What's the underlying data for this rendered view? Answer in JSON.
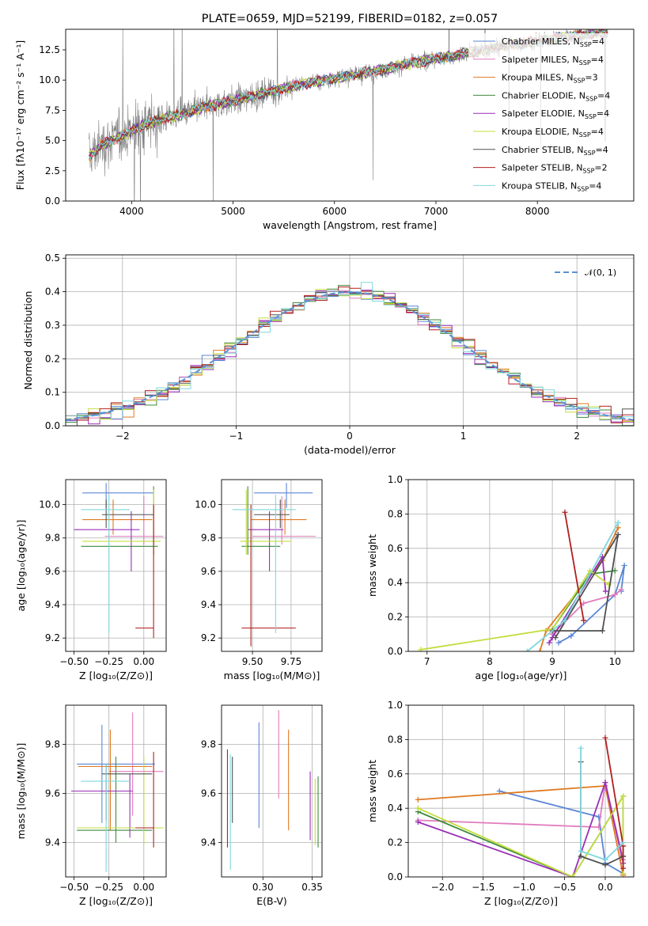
{
  "colors": {
    "Chabrier MILES": "#5b86d6",
    "Salpeter MILES": "#e07bbd",
    "Kroupa MILES": "#de7a22",
    "Chabrier ELODIE": "#3f8a3f",
    "Salpeter ELODIE": "#9a2fb8",
    "Kroupa ELODIE": "#c4dd3e",
    "Chabrier STELIB": "#505050",
    "Salpeter STELIB": "#b21f1f",
    "Kroupa STELIB": "#7fd7dd",
    "data": "#808080",
    "gaussian": "#5b8fd6"
  },
  "chart_data": [
    {
      "id": "spectrum",
      "type": "line",
      "title": "PLATE=0659, MJD=52199, FIBERID=0182, z=0.057",
      "xlabel": "wavelength [Angstrom, rest frame]",
      "ylabel": "Flux [fλ10⁻¹⁷ erg cm⁻² s⁻¹ A⁻¹]",
      "xlim": [
        3350,
        8950
      ],
      "ylim": [
        0,
        14.2
      ],
      "xticks": [
        "4000",
        "5000",
        "6000",
        "7000",
        "8000"
      ],
      "yticks": [
        "0.0",
        "2.5",
        "5.0",
        "7.5",
        "10.0",
        "12.5"
      ],
      "continuum": {
        "x": [
          3580,
          3700,
          3900,
          4100,
          4300,
          4500,
          4700,
          4900,
          5100,
          5300,
          5500,
          5700,
          5900,
          6100,
          6300,
          6500,
          6700,
          6900,
          7100,
          7300,
          7500,
          7700,
          7900,
          8100,
          8300,
          8500,
          8700
        ],
        "y": [
          3.7,
          4.6,
          5.4,
          6.2,
          6.8,
          7.2,
          7.7,
          8.1,
          8.5,
          8.9,
          9.3,
          9.7,
          10.0,
          10.3,
          10.6,
          10.9,
          11.3,
          11.6,
          11.9,
          12.2,
          12.5,
          12.9,
          13.1,
          13.3,
          13.6,
          13.8,
          14.0
        ]
      },
      "legend": [
        {
          "label": "Chabrier MILES, N",
          "n": "4"
        },
        {
          "label": "Salpeter MILES, N",
          "n": "4"
        },
        {
          "label": "Kroupa MILES, N",
          "n": "3"
        },
        {
          "label": "Chabrier ELODIE, N",
          "n": "4"
        },
        {
          "label": "Salpeter ELODIE, N",
          "n": "4"
        },
        {
          "label": "Kroupa ELODIE, N",
          "n": "4"
        },
        {
          "label": "Chabrier STELIB, N",
          "n": "4"
        },
        {
          "label": "Salpeter STELIB, N",
          "n": "2"
        },
        {
          "label": "Kroupa STELIB, N",
          "n": "4"
        }
      ],
      "legend_sub": "SSP",
      "legend_loc": "right"
    },
    {
      "id": "residuals",
      "type": "histogram",
      "xlabel": "(data-model)/error",
      "ylabel": "Normed distribution",
      "xlim": [
        -2.5,
        2.5
      ],
      "ylim": [
        0,
        0.51
      ],
      "xticks": [
        "−2",
        "−1",
        "0",
        "1",
        "2"
      ],
      "yticks": [
        "0.0",
        "0.1",
        "0.2",
        "0.3",
        "0.4",
        "0.5"
      ],
      "gaussian_label": "𝒩(0, 1)",
      "legend_loc": "upper right",
      "grid": true,
      "bin_width": 0.1
    },
    {
      "id": "age-vs-Z",
      "type": "errorbar",
      "xlabel": "Z [log₁₀(Z/Z⊙)]",
      "ylabel": "age  [log₁₀(age/yr)]",
      "xlim": [
        -0.56,
        0.16
      ],
      "ylim": [
        9.12,
        10.15
      ],
      "xticks": [
        "−0.50",
        "−0.25",
        "0.00"
      ],
      "yticks": [
        "9.2",
        "9.4",
        "9.6",
        "9.8",
        "10.0"
      ],
      "points": [
        {
          "s": "Chabrier MILES",
          "x": -0.27,
          "y": 10.07,
          "xl": -0.44,
          "xh": 0.07,
          "yl": 9.98,
          "yh": 10.13
        },
        {
          "s": "Salpeter MILES",
          "x": 0.0,
          "y": 9.81,
          "xl": -0.28,
          "xh": 0.14,
          "yl": 9.76,
          "yh": 10.05
        },
        {
          "s": "Kroupa MILES",
          "x": -0.22,
          "y": 9.91,
          "xl": -0.44,
          "xh": 0.06,
          "yl": 9.82,
          "yh": 10.03
        },
        {
          "s": "Chabrier ELODIE",
          "x": 0.07,
          "y": 9.75,
          "xl": -0.45,
          "xh": 0.1,
          "yl": 9.7,
          "yh": 10.11
        },
        {
          "s": "Salpeter ELODIE",
          "x": -0.09,
          "y": 9.85,
          "xl": -0.5,
          "xh": -0.03,
          "yl": 9.6,
          "yh": 9.96
        },
        {
          "s": "Kroupa ELODIE",
          "x": 0.07,
          "y": 9.78,
          "xl": -0.44,
          "xh": 0.12,
          "yl": 9.7,
          "yh": 10.09
        },
        {
          "s": "Chabrier STELIB",
          "x": -0.27,
          "y": 9.94,
          "xl": -0.3,
          "xh": 0.07,
          "yl": 9.86,
          "yh": 10.03
        },
        {
          "s": "Salpeter STELIB",
          "x": 0.07,
          "y": 9.26,
          "xl": -0.06,
          "xh": 0.07,
          "yl": 9.2,
          "yh": 10.0
        },
        {
          "s": "Kroupa STELIB",
          "x": -0.25,
          "y": 9.97,
          "xl": -0.45,
          "xh": -0.1,
          "yl": 9.23,
          "yh": 10.06
        }
      ]
    },
    {
      "id": "age-vs-mass",
      "type": "errorbar",
      "xlabel": "mass [log₁₀(M/M⊙)]",
      "ylabel": "",
      "xlim": [
        9.3,
        9.95
      ],
      "ylim": [
        9.12,
        10.15
      ],
      "xticks": [
        "9.50",
        "9.75"
      ],
      "yticks": [
        "9.2",
        "9.4",
        "9.6",
        "9.8",
        "10.0"
      ],
      "points": [
        {
          "s": "Chabrier MILES",
          "x": 9.72,
          "y": 10.07,
          "xl": 9.51,
          "xh": 9.89,
          "yl": 9.98,
          "yh": 10.13
        },
        {
          "s": "Salpeter MILES",
          "x": 9.69,
          "y": 9.81,
          "xl": 9.5,
          "xh": 9.91,
          "yl": 9.76,
          "yh": 10.05
        },
        {
          "s": "Kroupa MILES",
          "x": 9.71,
          "y": 9.91,
          "xl": 9.49,
          "xh": 9.85,
          "yl": 9.82,
          "yh": 10.03
        },
        {
          "s": "Chabrier ELODIE",
          "x": 9.47,
          "y": 9.75,
          "xl": 9.43,
          "xh": 9.68,
          "yl": 9.7,
          "yh": 10.11
        },
        {
          "s": "Salpeter ELODIE",
          "x": 9.61,
          "y": 9.85,
          "xl": 9.47,
          "xh": 9.7,
          "yl": 9.6,
          "yh": 9.96
        },
        {
          "s": "Kroupa ELODIE",
          "x": 9.46,
          "y": 9.78,
          "xl": 9.42,
          "xh": 9.75,
          "yl": 9.7,
          "yh": 10.09
        },
        {
          "s": "Chabrier STELIB",
          "x": 9.68,
          "y": 9.94,
          "xl": 9.51,
          "xh": 9.74,
          "yl": 9.86,
          "yh": 10.03
        },
        {
          "s": "Salpeter STELIB",
          "x": 9.49,
          "y": 9.26,
          "xl": 9.43,
          "xh": 9.78,
          "yl": 9.15,
          "yh": 10.0
        },
        {
          "s": "Kroupa STELIB",
          "x": 9.65,
          "y": 9.97,
          "xl": 9.37,
          "xh": 9.78,
          "yl": 9.23,
          "yh": 10.06
        }
      ]
    },
    {
      "id": "weight-vs-age",
      "type": "line",
      "xlabel": "age  [log₁₀(age/yr)]",
      "ylabel": "mass weight",
      "xlim": [
        6.7,
        10.3
      ],
      "ylim": [
        0,
        1.0
      ],
      "xticks": [
        "7",
        "8",
        "9",
        "10"
      ],
      "yticks": [
        "0.0",
        "0.2",
        "0.4",
        "0.6",
        "0.8",
        "1.0"
      ],
      "series": [
        {
          "s": "Chabrier MILES",
          "x": [
            9.1,
            9.3,
            10.0,
            10.15,
            10.1
          ],
          "y": [
            0.05,
            0.09,
            0.33,
            0.5,
            0.35
          ]
        },
        {
          "s": "Salpeter MILES",
          "x": [
            9.0,
            9.5,
            10.0,
            10.1
          ],
          "y": [
            0.1,
            0.28,
            0.33,
            0.36
          ]
        },
        {
          "s": "Kroupa MILES",
          "x": [
            8.8,
            8.9,
            9.8,
            10.05
          ],
          "y": [
            0.0,
            0.12,
            0.53,
            0.72
          ]
        },
        {
          "s": "Chabrier ELODIE",
          "x": [
            9.0,
            9.6,
            10.0
          ],
          "y": [
            0.13,
            0.45,
            0.47
          ]
        },
        {
          "s": "Salpeter ELODIE",
          "x": [
            8.95,
            9.0,
            9.8,
            9.85
          ],
          "y": [
            0.05,
            0.08,
            0.55,
            0.35
          ]
        },
        {
          "s": "Kroupa ELODIE",
          "x": [
            6.9,
            9.0,
            9.6,
            9.9
          ],
          "y": [
            0.01,
            0.13,
            0.47,
            0.39
          ]
        },
        {
          "s": "Chabrier STELIB",
          "x": [
            9.0,
            9.8,
            10.05,
            9.05
          ],
          "y": [
            0.12,
            0.12,
            0.68,
            0.08
          ]
        },
        {
          "s": "Salpeter STELIB",
          "x": [
            9.2,
            9.5
          ],
          "y": [
            0.81,
            0.18
          ]
        },
        {
          "s": "Kroupa STELIB",
          "x": [
            8.6,
            9.2,
            10.05
          ],
          "y": [
            0.0,
            0.18,
            0.75
          ]
        }
      ]
    },
    {
      "id": "mass-vs-Z",
      "type": "errorbar",
      "xlabel": "Z [log₁₀(Z/Z⊙)]",
      "ylabel": "mass [log₁₀(M/M⊙)]",
      "xlim": [
        -0.56,
        0.16
      ],
      "ylim": [
        9.26,
        9.96
      ],
      "xticks": [
        "−0.50",
        "−0.25",
        "0.00"
      ],
      "yticks": [
        "9.4",
        "9.6",
        "9.8"
      ],
      "points": [
        {
          "s": "Chabrier MILES",
          "x": -0.3,
          "y": 9.72,
          "xl": -0.48,
          "xh": 0.08,
          "yl": 9.48,
          "yh": 9.88
        },
        {
          "s": "Salpeter MILES",
          "x": -0.08,
          "y": 9.69,
          "xl": -0.25,
          "xh": 0.14,
          "yl": 9.51,
          "yh": 9.93
        },
        {
          "s": "Kroupa MILES",
          "x": -0.24,
          "y": 9.71,
          "xl": -0.47,
          "xh": 0.06,
          "yl": 9.45,
          "yh": 9.86
        },
        {
          "s": "Chabrier ELODIE",
          "x": -0.2,
          "y": 9.45,
          "xl": -0.48,
          "xh": 0.06,
          "yl": 9.4,
          "yh": 9.75
        },
        {
          "s": "Salpeter ELODIE",
          "x": -0.1,
          "y": 9.61,
          "xl": -0.52,
          "xh": -0.08,
          "yl": 9.42,
          "yh": 9.68
        },
        {
          "s": "Kroupa ELODIE",
          "x": 0.0,
          "y": 9.46,
          "xl": -0.48,
          "xh": 0.14,
          "yl": 9.39,
          "yh": 9.75
        },
        {
          "s": "Chabrier STELIB",
          "x": -0.27,
          "y": 9.68,
          "xl": -0.3,
          "xh": 0.06,
          "yl": 9.49,
          "yh": 9.72
        },
        {
          "s": "Salpeter STELIB",
          "x": 0.07,
          "y": 9.46,
          "xl": -0.06,
          "xh": 0.07,
          "yl": 9.38,
          "yh": 9.77
        },
        {
          "s": "Kroupa STELIB",
          "x": -0.27,
          "y": 9.65,
          "xl": -0.45,
          "xh": -0.1,
          "yl": 9.28,
          "yh": 9.72
        }
      ]
    },
    {
      "id": "mass-vs-EBV",
      "type": "errorbar",
      "xlabel": "E(B-V)",
      "ylabel": "",
      "xlim": [
        0.258,
        0.36
      ],
      "ylim": [
        9.26,
        9.96
      ],
      "xticks": [
        "0.30",
        "0.35"
      ],
      "yticks": [
        "9.4",
        "9.6",
        "9.8"
      ],
      "points": [
        {
          "s": "Chabrier MILES",
          "x": 0.296,
          "y": 9.72,
          "yl": 9.46,
          "yh": 9.89
        },
        {
          "s": "Salpeter MILES",
          "x": 0.316,
          "y": 9.69,
          "yl": 9.58,
          "yh": 9.94
        },
        {
          "s": "Kroupa MILES",
          "x": 0.326,
          "y": 9.71,
          "yl": 9.45,
          "yh": 9.86
        },
        {
          "s": "Chabrier ELODIE",
          "x": 0.356,
          "y": 9.45,
          "yl": 9.38,
          "yh": 9.67
        },
        {
          "s": "Salpeter ELODIE",
          "x": 0.348,
          "y": 9.61,
          "yl": 9.41,
          "yh": 9.69
        },
        {
          "s": "Kroupa ELODIE",
          "x": 0.353,
          "y": 9.46,
          "yl": 9.39,
          "yh": 9.66
        },
        {
          "s": "Chabrier STELIB",
          "x": 0.269,
          "y": 9.68,
          "yl": 9.48,
          "yh": 9.75
        },
        {
          "s": "Salpeter STELIB",
          "x": 0.264,
          "y": 9.46,
          "yl": 9.38,
          "yh": 9.78
        },
        {
          "s": "Kroupa STELIB",
          "x": 0.267,
          "y": 9.65,
          "yl": 9.29,
          "yh": 9.76
        }
      ]
    },
    {
      "id": "weight-vs-Z",
      "type": "line",
      "xlabel": "Z [log₁₀(Z/Z⊙)]",
      "ylabel": "mass weight",
      "xlim": [
        -2.42,
        0.35
      ],
      "ylim": [
        0,
        1.0
      ],
      "xticks": [
        "−2.0",
        "−1.5",
        "−1.0",
        "−0.5",
        "0.0"
      ],
      "yticks": [
        "0.0",
        "0.2",
        "0.4",
        "0.6",
        "0.8",
        "1.0"
      ],
      "series": [
        {
          "s": "Chabrier MILES",
          "x": [
            -1.3,
            -0.08,
            0.0,
            0.22
          ],
          "y": [
            0.5,
            0.35,
            0.08,
            0.02
          ]
        },
        {
          "s": "Salpeter MILES",
          "x": [
            -2.3,
            -0.08,
            0.0,
            0.22
          ],
          "y": [
            0.33,
            0.29,
            0.55,
            0.1
          ]
        },
        {
          "s": "Kroupa MILES",
          "x": [
            -2.3,
            0.0,
            0.22
          ],
          "y": [
            0.45,
            0.53,
            0.01
          ]
        },
        {
          "s": "Chabrier ELODIE",
          "x": [
            -2.3,
            -0.4,
            0.22,
            0.22
          ],
          "y": [
            0.38,
            0.0,
            0.47,
            0.12
          ]
        },
        {
          "s": "Salpeter ELODIE",
          "x": [
            -2.3,
            -0.4,
            0.0,
            0.22
          ],
          "y": [
            0.32,
            0.0,
            0.55,
            0.08
          ]
        },
        {
          "s": "Kroupa ELODIE",
          "x": [
            -2.3,
            -0.4,
            0.22,
            0.22
          ],
          "y": [
            0.4,
            0.0,
            0.47,
            0.02
          ]
        },
        {
          "s": "Chabrier STELIB",
          "x": [
            -0.3,
            -0.3,
            0.0,
            0.22
          ],
          "y": [
            0.67,
            0.12,
            0.07,
            0.12
          ]
        },
        {
          "s": "Salpeter STELIB",
          "x": [
            0.0,
            0.22,
            0.22
          ],
          "y": [
            0.81,
            0.18,
            0.05
          ]
        },
        {
          "s": "Kroupa STELIB",
          "x": [
            -0.3,
            -0.3,
            0.0,
            0.22
          ],
          "y": [
            0.75,
            0.15,
            0.1,
            0.2
          ]
        }
      ]
    }
  ]
}
